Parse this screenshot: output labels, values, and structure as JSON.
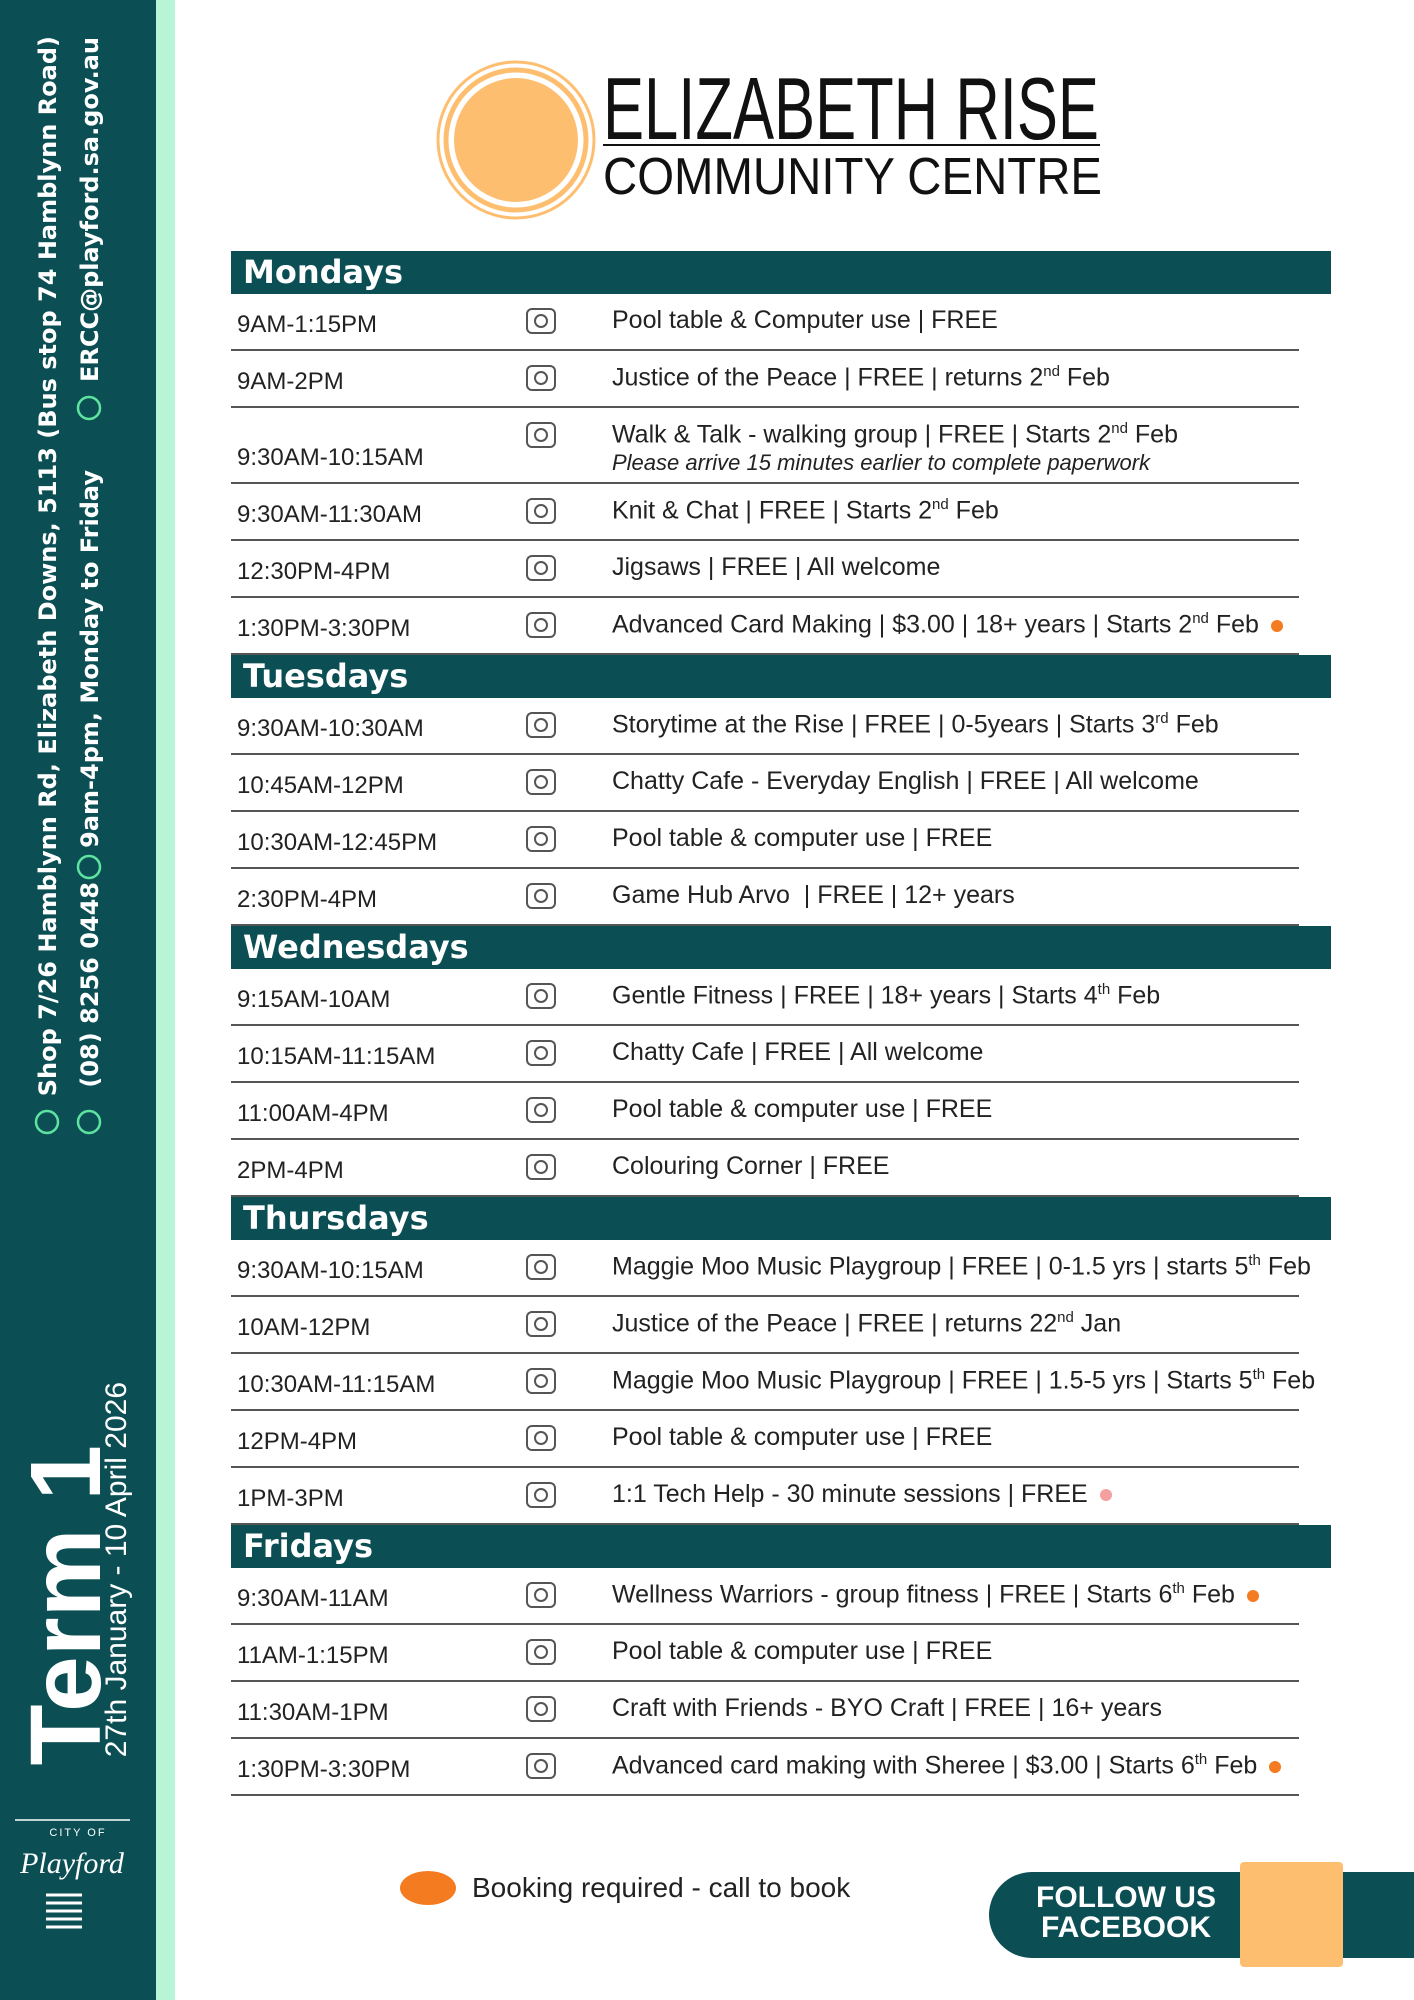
{
  "header": {
    "title": "ELIZABETH RISE",
    "subtitle": "COMMUNITY CENTRE"
  },
  "sidebar": {
    "address": "Shop 7/26 Hamblynn Rd, Elizabeth Downs, 5113 (Bus stop 74 Hamblynn Road)",
    "phone": "(08) 8256 0448",
    "hours": "9am-4pm, Monday to Friday",
    "email": "ERCC@playford.sa.gov.au",
    "term": "Term 1",
    "dates": "27th January - 10 April 2026",
    "council": [
      "CITY OF",
      "Playford"
    ]
  },
  "days": [
    {
      "name": "Mondays",
      "rows": [
        {
          "time": "9AM-1:15PM",
          "activity": [
            "Pool table & Computer use | FREE"
          ]
        },
        {
          "time": "9AM-2PM",
          "activity": [
            "Justice of the Peace | FREE | returns 2",
            "nd",
            " Feb"
          ]
        },
        {
          "time": "9:30AM-10:15AM",
          "activity": [
            "Walk & Talk - walking group | FREE | Starts 2",
            "nd",
            " Feb"
          ],
          "note": "Please arrive 15 minutes earlier to complete paperwork"
        },
        {
          "time": "9:30AM-11:30AM",
          "activity": [
            "Knit & Chat | FREE | Starts 2",
            "nd",
            " Feb"
          ]
        },
        {
          "time": "12:30PM-4PM",
          "activity": [
            "Jigsaws | FREE | All welcome"
          ]
        },
        {
          "time": "1:30PM-3:30PM",
          "activity": [
            "Advanced Card Making | $3.00 | 18+ years | Starts 2",
            "nd",
            " Feb"
          ],
          "dot": "#f47b20"
        }
      ]
    },
    {
      "name": "Tuesdays",
      "rows": [
        {
          "time": "9:30AM-10:30AM",
          "activity": [
            "Storytime at the Rise | FREE | 0-5years | Starts 3",
            "rd",
            " Feb"
          ]
        },
        {
          "time": "10:45AM-12PM",
          "activity": [
            "Chatty Cafe - Everyday English | FREE | All welcome"
          ]
        },
        {
          "time": "10:30AM-12:45PM",
          "activity": [
            "Pool table & computer use | FREE"
          ]
        },
        {
          "time": "2:30PM-4PM",
          "activity": [
            "Game Hub Arvo  | FREE | 12+ years"
          ]
        }
      ]
    },
    {
      "name": "Wednesdays",
      "rows": [
        {
          "time": "9:15AM-10AM",
          "activity": [
            "Gentle Fitness | FREE | 18+ years | Starts 4",
            "th",
            " Feb"
          ]
        },
        {
          "time": "10:15AM-11:15AM",
          "activity": [
            "Chatty Cafe | FREE | All welcome"
          ]
        },
        {
          "time": "11:00AM-4PM",
          "activity": [
            "Pool table & computer use | FREE"
          ]
        },
        {
          "time": "2PM-4PM",
          "activity": [
            "Colouring Corner | FREE"
          ]
        }
      ]
    },
    {
      "name": "Thursdays",
      "rows": [
        {
          "time": "9:30AM-10:15AM",
          "activity": [
            "Maggie Moo Music Playgroup | FREE | 0-1.5 yrs | starts 5",
            "th",
            " Feb"
          ]
        },
        {
          "time": "10AM-12PM",
          "activity": [
            "Justice of the Peace | FREE | returns 22",
            "nd",
            " Jan"
          ]
        },
        {
          "time": "10:30AM-11:15AM",
          "activity": [
            "Maggie Moo Music Playgroup | FREE | 1.5-5 yrs | Starts 5",
            "th",
            " Feb"
          ]
        },
        {
          "time": "12PM-4PM",
          "activity": [
            "Pool table & computer use | FREE"
          ]
        },
        {
          "time": "1PM-3PM",
          "activity": [
            "1:1 Tech Help - 30 minute sessions | FREE"
          ],
          "dot": "#f4a0a0"
        }
      ]
    },
    {
      "name": "Fridays",
      "rows": [
        {
          "time": "9:30AM-11AM",
          "activity": [
            "Wellness Warriors - group fitness | FREE | Starts 6",
            "th",
            " Feb"
          ],
          "dot": "#f47b20"
        },
        {
          "time": "11AM-1:15PM",
          "activity": [
            "Pool table & computer use | FREE"
          ]
        },
        {
          "time": "11:30AM-1PM",
          "activity": [
            "Craft with Friends - BYO Craft | FREE | 16+ years"
          ]
        },
        {
          "time": "1:30PM-3:30PM",
          "activity": [
            "Advanced card making with Sheree | $3.00 | Starts 6",
            "th",
            " Feb"
          ],
          "dot": "#f47b20"
        }
      ]
    }
  ],
  "footer": {
    "booking": "Booking required - call to book",
    "booking_color": "#f47b20",
    "follow": [
      "FOLLOW US",
      "FACEBOOK"
    ]
  }
}
